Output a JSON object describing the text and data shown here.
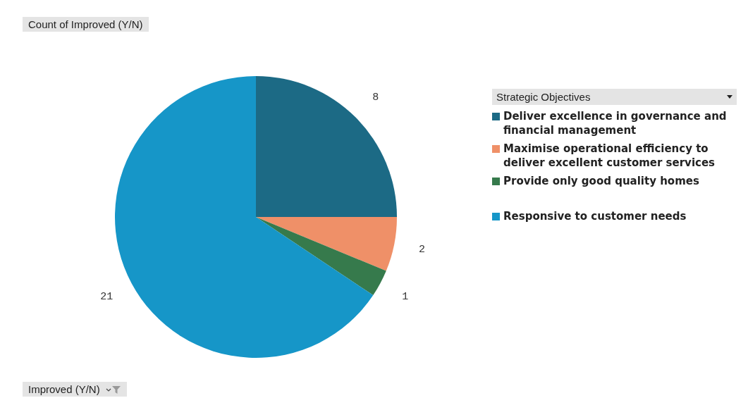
{
  "chart_data": {
    "type": "pie",
    "title": "Count of Improved (Y/N)",
    "legend_title": "Strategic Objectives",
    "annotations": [
      "Improved (Y/N)"
    ],
    "categories": [
      "Deliver excellence in governance and financial management",
      "Maximise operational efficiency to deliver excellent customer services",
      "Provide only good quality homes",
      "Responsive to customer needs"
    ],
    "values": [
      8,
      2,
      1,
      21
    ],
    "colors": [
      "#1c6a85",
      "#ef9068",
      "#367a4c",
      "#1696c8"
    ],
    "data_labels": true,
    "legend": "right"
  }
}
